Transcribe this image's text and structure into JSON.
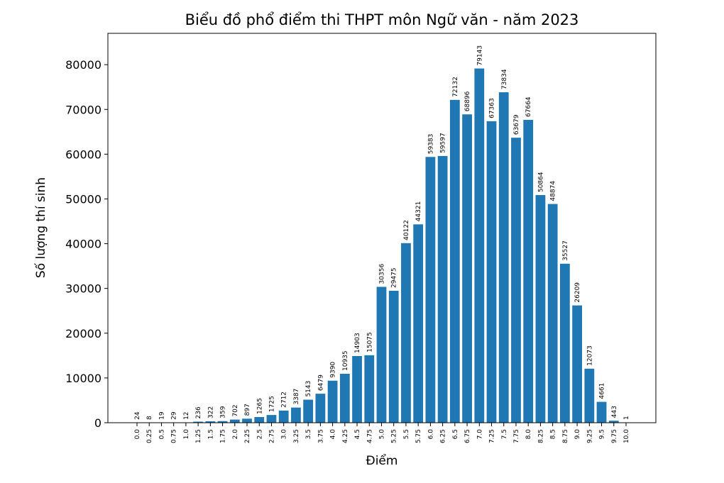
{
  "chart_data": {
    "type": "bar",
    "title": "Biểu đồ phổ điểm thi THPT môn Ngữ văn - năm 2023",
    "x_label": "Điểm",
    "y_label": "Số lượng thí sinh",
    "categories": [
      "0.0",
      "0.25",
      "0.5",
      "0.75",
      "1.0",
      "1.25",
      "1.5",
      "1.75",
      "2.0",
      "2.25",
      "2.5",
      "2.75",
      "3.0",
      "3.25",
      "3.5",
      "3.75",
      "4.0",
      "4.25",
      "4.5",
      "4.75",
      "5.0",
      "5.25",
      "5.5",
      "5.75",
      "6.0",
      "6.25",
      "6.5",
      "6.75",
      "7.0",
      "7.25",
      "7.5",
      "7.75",
      "8.0",
      "8.25",
      "8.5",
      "8.75",
      "9.0",
      "9.25",
      "9.5",
      "9.75",
      "10.0"
    ],
    "values": [
      24,
      8,
      19,
      29,
      12,
      236,
      322,
      359,
      702,
      897,
      1265,
      1725,
      2712,
      3387,
      5143,
      6479,
      9390,
      10935,
      14903,
      15075,
      30356,
      29475,
      40122,
      44321,
      59383,
      59597,
      72132,
      68896,
      79143,
      67363,
      73834,
      63679,
      67664,
      50864,
      48874,
      35527,
      26209,
      12073,
      4661,
      443,
      1
    ],
    "color": "#1f77b4",
    "ylim": [
      0,
      87000
    ],
    "yticks": [
      0,
      10000,
      20000,
      30000,
      40000,
      50000,
      60000,
      70000,
      80000
    ]
  }
}
